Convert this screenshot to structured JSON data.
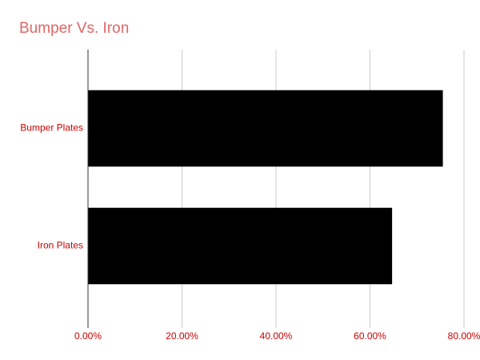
{
  "chart_data": {
    "type": "hbar",
    "title": "Bumper Vs. Iron",
    "categories": [
      "Bumper Plates",
      "Iron Plates"
    ],
    "values": [
      75.5,
      64.7
    ],
    "color": "#000000",
    "xlim": [
      0,
      80
    ],
    "xticks": [
      {
        "value": 0,
        "label": "0.00%"
      },
      {
        "value": 20,
        "label": "20.00%"
      },
      {
        "value": 40,
        "label": "40.00%"
      },
      {
        "value": 60,
        "label": "60.00%"
      },
      {
        "value": 80,
        "label": "80.00%"
      }
    ],
    "grid": true
  }
}
